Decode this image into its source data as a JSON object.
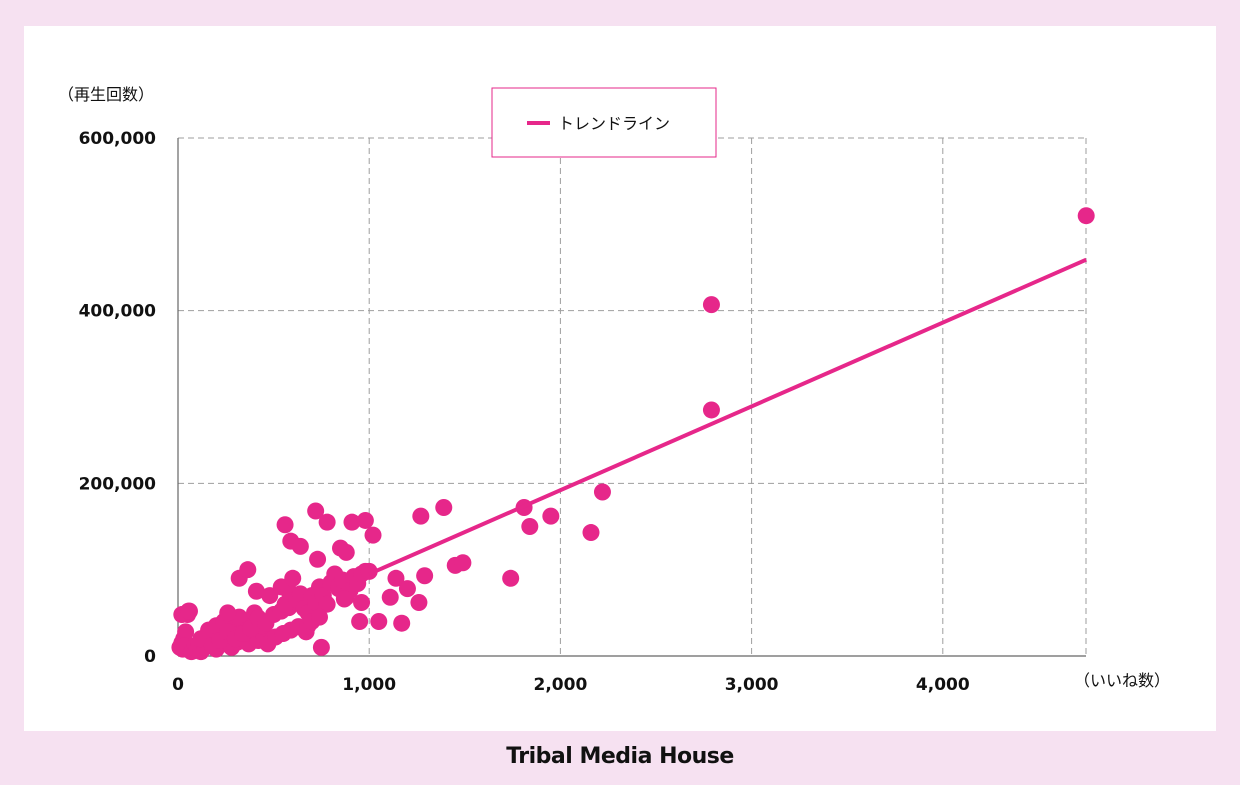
{
  "colors": {
    "page_bg": "#f6e1f1",
    "panel_bg": "#ffffff",
    "accent": "#e6278a",
    "grid": "#9e9e9e"
  },
  "footer": {
    "brand": "Tribal Media House"
  },
  "chart_data": {
    "type": "scatter",
    "title": "",
    "xlabel": "（いいね数）",
    "ylabel": "（再生回数）",
    "xlim": [
      0,
      4750
    ],
    "ylim": [
      0,
      600000
    ],
    "x_ticks": [
      0,
      1000,
      2000,
      3000,
      4000
    ],
    "y_ticks": [
      0,
      200000,
      400000,
      600000
    ],
    "x_tick_labels": [
      "0",
      "1,000",
      "2,000",
      "3,000",
      "4,000"
    ],
    "y_tick_labels": [
      "0",
      "200,000",
      "400,000",
      "600,000"
    ],
    "grid": true,
    "legend": {
      "position": "top-center",
      "entries": [
        "トレンドライン"
      ]
    },
    "trendline": {
      "name": "トレンドライン",
      "x": [
        1000,
        4750
      ],
      "y": [
        95000,
        459000
      ]
    },
    "points": {
      "x": [
        10,
        20,
        30,
        40,
        25,
        35,
        50,
        60,
        70,
        80,
        90,
        100,
        110,
        120,
        130,
        140,
        150,
        160,
        170,
        180,
        190,
        200,
        210,
        220,
        230,
        240,
        250,
        260,
        270,
        280,
        290,
        300,
        310,
        320,
        330,
        340,
        350,
        360,
        370,
        380,
        390,
        400,
        410,
        420,
        430,
        440,
        450,
        120,
        160,
        200,
        240,
        280,
        320,
        360,
        400,
        440,
        180,
        220,
        260,
        300,
        340,
        380,
        420,
        460,
        500,
        540,
        580,
        620,
        660,
        700,
        470,
        510,
        550,
        590,
        630,
        670,
        20,
        55,
        320,
        365,
        410,
        260,
        480,
        540,
        560,
        580,
        600,
        620,
        640,
        660,
        680,
        700,
        720,
        740,
        760,
        780,
        800,
        820,
        840,
        860,
        880,
        900,
        920,
        940,
        960,
        980,
        560,
        590,
        640,
        720,
        780,
        730,
        910,
        980,
        1020,
        850,
        880,
        960,
        1000,
        870,
        680,
        700,
        740,
        750,
        950,
        1050,
        1110,
        1170,
        1200,
        1140,
        1290,
        1260,
        1270,
        1390,
        1450,
        1490,
        1740,
        1810,
        1840,
        1950,
        2160,
        2220,
        2790,
        2790,
        4750
      ],
      "y": [
        10000,
        15000,
        20000,
        28000,
        8000,
        12000,
        48000,
        52000,
        5000,
        10000,
        12000,
        8000,
        14000,
        5000,
        18000,
        10000,
        22000,
        16000,
        30000,
        12000,
        24000,
        8000,
        28000,
        20000,
        36000,
        14000,
        26000,
        18000,
        32000,
        10000,
        22000,
        28000,
        16000,
        38000,
        24000,
        20000,
        34000,
        30000,
        14000,
        42000,
        26000,
        22000,
        36000,
        18000,
        30000,
        40000,
        24000,
        20000,
        30000,
        35000,
        40000,
        25000,
        45000,
        30000,
        50000,
        35000,
        12000,
        18000,
        28000,
        20000,
        26000,
        32000,
        44000,
        38000,
        48000,
        52000,
        56000,
        62000,
        58000,
        70000,
        14000,
        22000,
        26000,
        30000,
        34000,
        28000,
        48000,
        52000,
        90000,
        100000,
        75000,
        50000,
        70000,
        80000,
        60000,
        75000,
        90000,
        65000,
        72000,
        55000,
        50000,
        68000,
        62000,
        80000,
        70000,
        60000,
        85000,
        95000,
        78000,
        88000,
        68000,
        76000,
        92000,
        84000,
        62000,
        98000,
        152000,
        133000,
        127000,
        168000,
        155000,
        112000,
        155000,
        157000,
        140000,
        125000,
        120000,
        95000,
        98000,
        66000,
        35000,
        40000,
        45000,
        10000,
        40000,
        40000,
        68000,
        38000,
        78000,
        90000,
        93000,
        62000,
        162000,
        172000,
        105000,
        108000,
        90000,
        172000,
        150000,
        162000,
        143000,
        190000,
        407000,
        285000,
        510000
      ]
    }
  }
}
